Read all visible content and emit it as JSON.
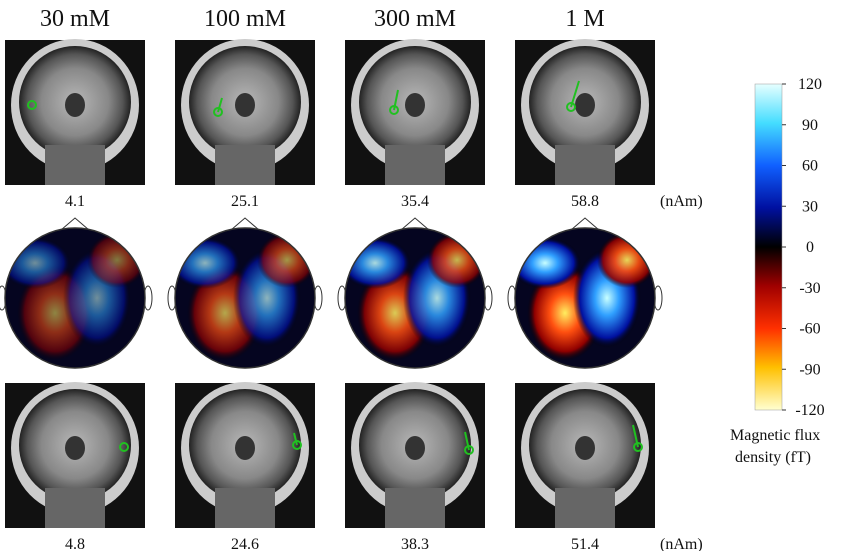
{
  "columns": [
    {
      "label": "30 mM",
      "top_value": 4.1,
      "bottom_value": 4.8
    },
    {
      "label": "100 mM",
      "top_value": 25.1,
      "bottom_value": 24.6
    },
    {
      "label": "300 mM",
      "top_value": 35.4,
      "bottom_value": 38.3
    },
    {
      "label": "1 M",
      "top_value": 58.8,
      "bottom_value": 51.4
    }
  ],
  "top_unit": "(nAm)",
  "bottom_unit": "(nAm)",
  "colorbar": {
    "range": [
      -120,
      120
    ],
    "ticks": [
      120,
      90,
      60,
      30,
      0,
      -30,
      -60,
      -90,
      -120
    ],
    "label_lines": [
      "Magnetic flux",
      "density (fT)"
    ]
  }
}
